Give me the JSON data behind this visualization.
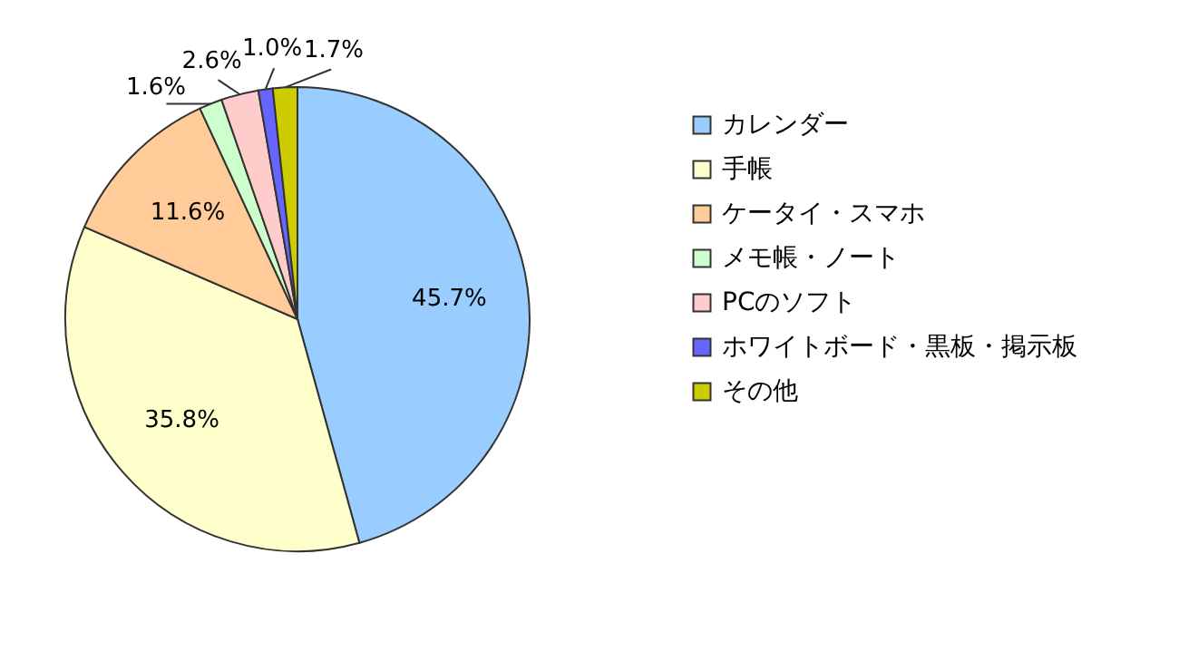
{
  "chart_data": {
    "type": "pie",
    "categories": [
      "カレンダー",
      "手帳",
      "ケータイ・スマホ",
      "メモ帳・ノート",
      "PCのソフト",
      "ホワイトボード・黒板・掲示板",
      "その他"
    ],
    "values": [
      45.7,
      35.8,
      11.6,
      1.6,
      2.6,
      1.0,
      1.7
    ],
    "value_labels": [
      "45.7%",
      "35.8%",
      "11.6%",
      "1.6%",
      "2.6%",
      "1.0%",
      "1.7%"
    ],
    "colors": [
      "#99ccff",
      "#ffffcc",
      "#ffcc99",
      "#ccffcc",
      "#ffcccc",
      "#6666ff",
      "#cccc00"
    ],
    "legend": "right"
  }
}
